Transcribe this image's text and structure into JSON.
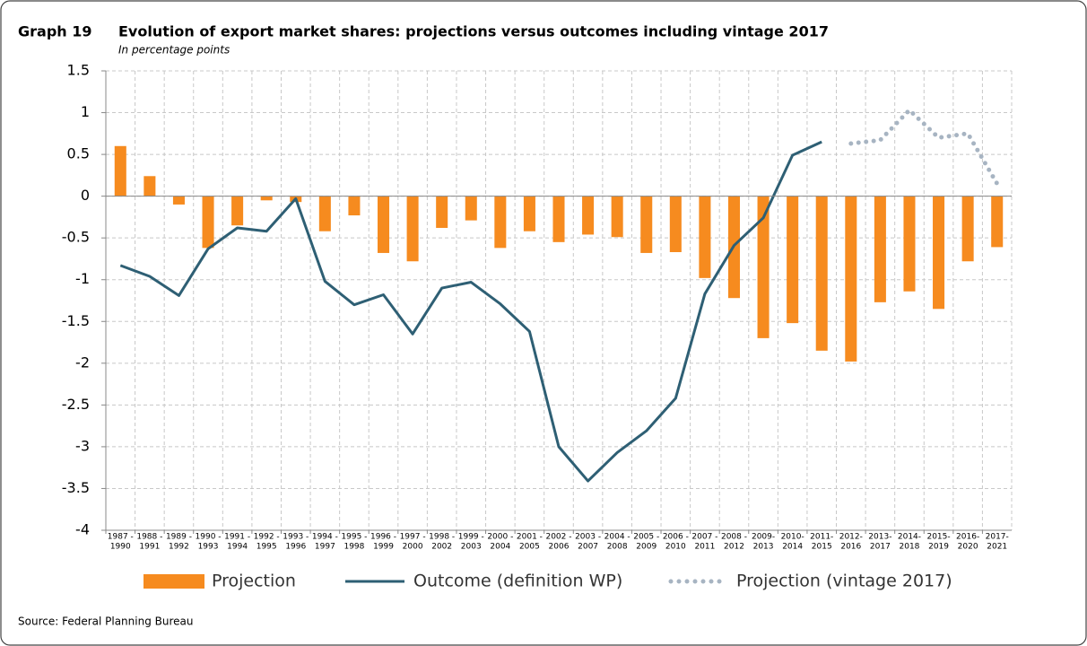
{
  "chart_data": {
    "type": "bar",
    "label": "Graph 19",
    "title": "Evolution of export market shares: projections versus outcomes including vintage 2017",
    "subtitle": "In percentage points",
    "source": "Source: Federal Planning Bureau",
    "categories": [
      [
        "1987 -",
        "1990"
      ],
      [
        "1988 -",
        "1991"
      ],
      [
        "1989 -",
        "1992"
      ],
      [
        "1990 -",
        "1993"
      ],
      [
        "1991 -",
        "1994"
      ],
      [
        "1992 -",
        "1995"
      ],
      [
        "1993 -",
        "1996"
      ],
      [
        "1994 -",
        "1997"
      ],
      [
        "1995 -",
        "1998"
      ],
      [
        "1996 -",
        "1999"
      ],
      [
        "1997 -",
        "2000"
      ],
      [
        "1998 -",
        "2002"
      ],
      [
        "1999 -",
        "2003"
      ],
      [
        "2000 -",
        "2004"
      ],
      [
        "2001 -",
        "2005"
      ],
      [
        "2002 -",
        "2006"
      ],
      [
        "2003 -",
        "2007"
      ],
      [
        "2004 -",
        "2008"
      ],
      [
        "2005 -",
        "2009"
      ],
      [
        "2006 -",
        "2010"
      ],
      [
        "2007 -",
        "2011"
      ],
      [
        "2008 -",
        "2012"
      ],
      [
        "2009-",
        "2013"
      ],
      [
        "2010-",
        "2014"
      ],
      [
        "2011-",
        "2015"
      ],
      [
        "2012-",
        "2016"
      ],
      [
        "2013-",
        "2017"
      ],
      [
        "2014-",
        "2018"
      ],
      [
        "2015-",
        "2019"
      ],
      [
        "2016-",
        "2020"
      ],
      [
        "2017-",
        "2021"
      ]
    ],
    "series": [
      {
        "name": "Projection",
        "type": "bar",
        "color": "#f68b1f",
        "values": [
          0.6,
          0.24,
          -0.1,
          -0.62,
          -0.35,
          -0.05,
          -0.07,
          -0.42,
          -0.23,
          -0.68,
          -0.78,
          -0.38,
          -0.29,
          -0.62,
          -0.42,
          -0.55,
          -0.46,
          -0.49,
          -0.68,
          -0.67,
          -0.98,
          -1.22,
          -1.7,
          -1.52,
          -1.85,
          -1.98,
          -1.27,
          -1.14,
          -1.35,
          -0.78,
          -0.61
        ]
      },
      {
        "name": "Outcome (definition WP)",
        "type": "line",
        "color": "#2e5f74",
        "values": [
          -0.83,
          -0.96,
          -1.19,
          -0.63,
          -0.38,
          -0.42,
          -0.03,
          -1.02,
          -1.3,
          -1.18,
          -1.65,
          -1.1,
          -1.03,
          -1.29,
          -1.62,
          -3.0,
          -3.41,
          -3.07,
          -2.81,
          -2.42,
          -1.17,
          -0.59,
          -0.26,
          0.49,
          0.65,
          null,
          null,
          null,
          null,
          null,
          null
        ]
      },
      {
        "name": "Projection (vintage 2017)",
        "type": "line",
        "style": "dotted",
        "color": "#a7b4c2",
        "values": [
          null,
          null,
          null,
          null,
          null,
          null,
          null,
          null,
          null,
          null,
          null,
          null,
          null,
          null,
          null,
          null,
          null,
          null,
          null,
          null,
          null,
          null,
          null,
          null,
          null,
          0.63,
          0.67,
          1.03,
          0.7,
          0.75,
          0.15
        ]
      }
    ],
    "ylim": [
      -4,
      1.5
    ],
    "yticks": [
      1.5,
      1,
      0.5,
      0,
      -0.5,
      -1,
      -1.5,
      -2,
      -2.5,
      -3,
      -3.5,
      -4
    ],
    "grid": true
  }
}
